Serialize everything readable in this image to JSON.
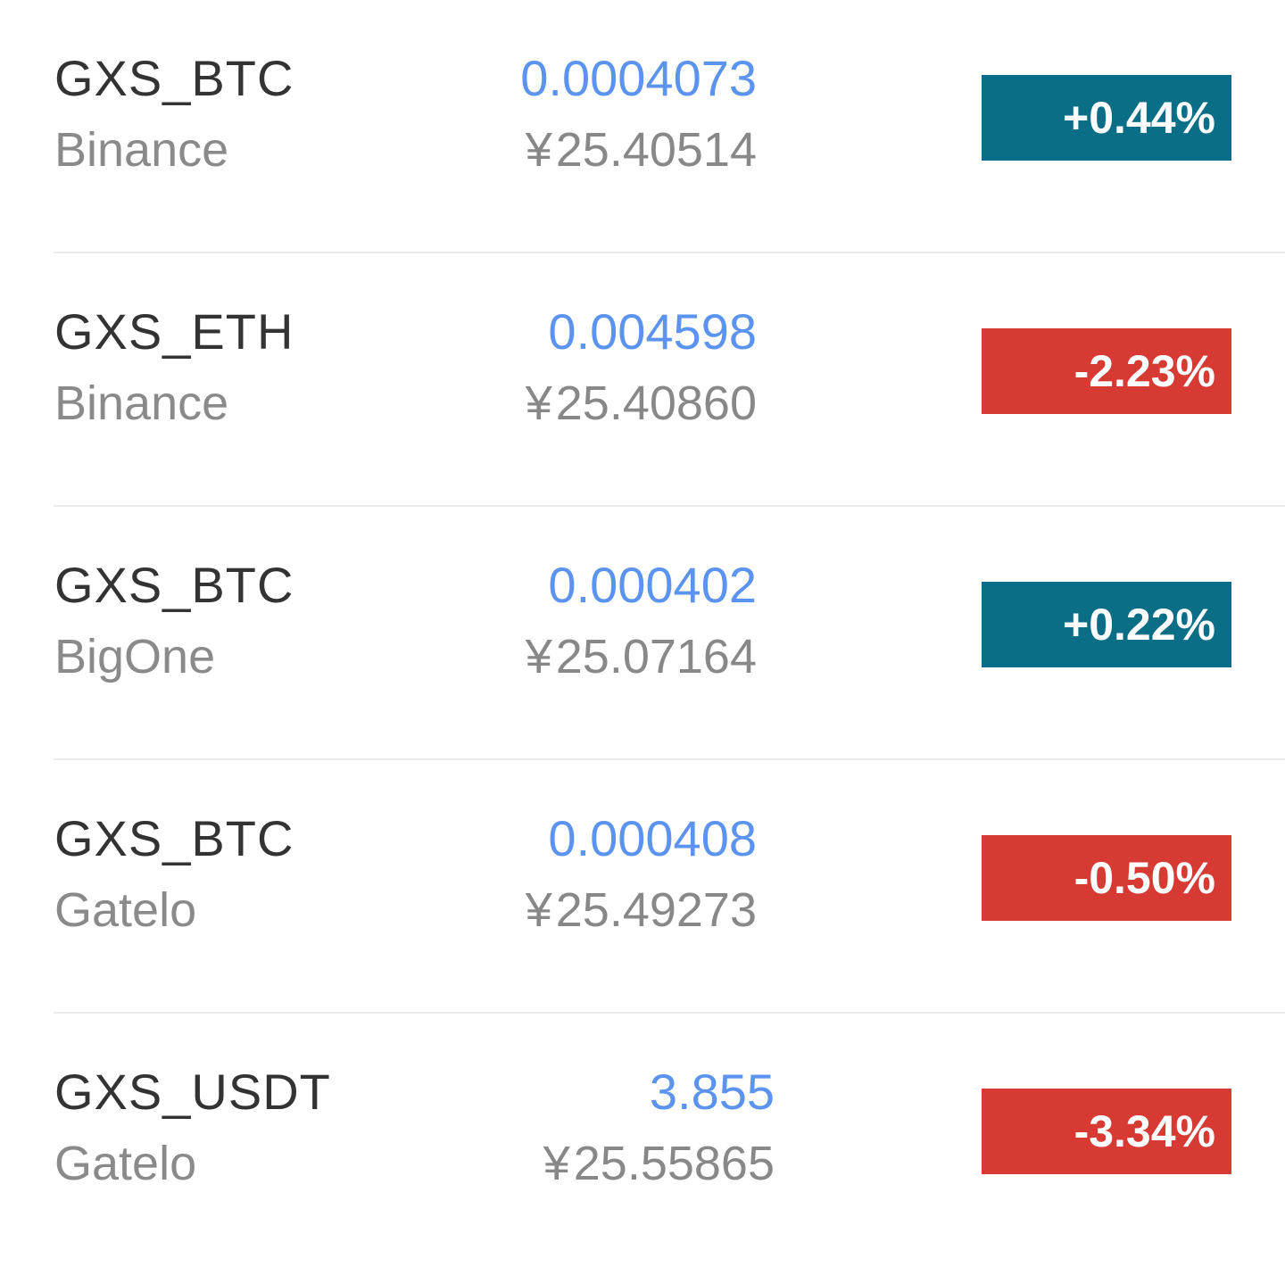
{
  "colors": {
    "price_text": "#5b93f0",
    "up_badge": "#0a6e87",
    "down_badge": "#d63a33",
    "pair_text": "#333333",
    "secondary_text": "#8a8a8a"
  },
  "currency_symbol": "¥",
  "markets": [
    {
      "pair": "GXS_BTC",
      "exchange": "Binance",
      "price": "0.0004073",
      "cny": "25.40514",
      "change": "+0.44%",
      "direction": "up"
    },
    {
      "pair": "GXS_ETH",
      "exchange": "Binance",
      "price": "0.004598",
      "cny": "25.40860",
      "change": "-2.23%",
      "direction": "down"
    },
    {
      "pair": "GXS_BTC",
      "exchange": "BigOne",
      "price": "0.000402",
      "cny": "25.07164",
      "change": "+0.22%",
      "direction": "up"
    },
    {
      "pair": "GXS_BTC",
      "exchange": "Gatelo",
      "price": "0.000408",
      "cny": "25.49273",
      "change": "-0.50%",
      "direction": "down"
    },
    {
      "pair": "GXS_USDT",
      "exchange": "Gatelo",
      "price": "3.855",
      "cny": "25.55865",
      "change": "-3.34%",
      "direction": "down"
    }
  ]
}
